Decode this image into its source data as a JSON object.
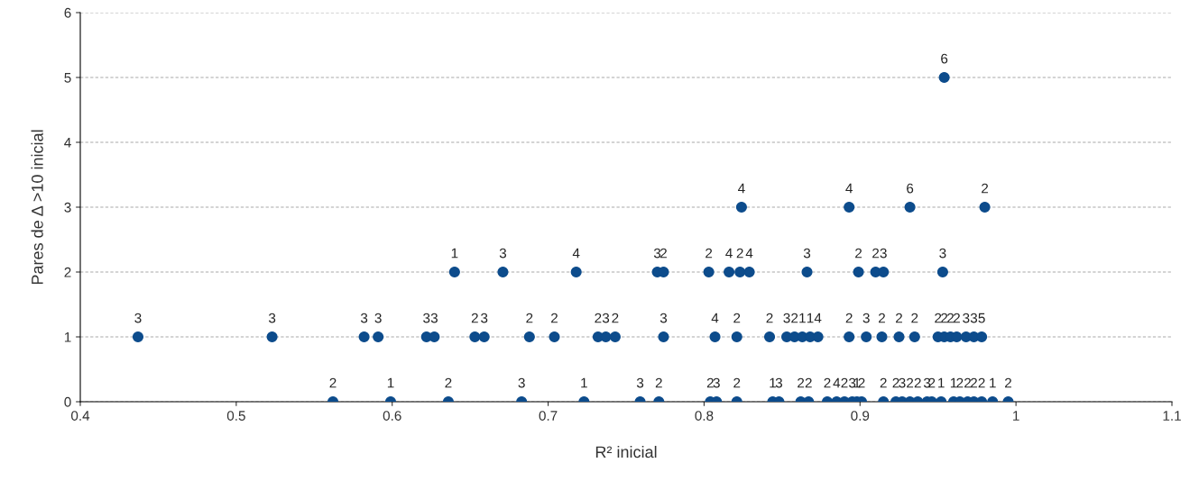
{
  "chart_data": {
    "type": "scatter",
    "xlabel": "R² inicial",
    "ylabel": "Pares de Δ >10 inicial",
    "xlim": [
      0.4,
      1.1
    ],
    "xticks": [
      0.4,
      0.5,
      0.6,
      0.7,
      0.8,
      0.9,
      1,
      1.1
    ],
    "ylim": [
      0,
      6
    ],
    "yticks": [
      0,
      1,
      2,
      3,
      4,
      5,
      6
    ],
    "grid": "y",
    "marker": "circle",
    "series": [
      {
        "color": "#0d4c8c",
        "x": [
          0.562,
          0.599,
          0.636,
          0.683,
          0.723,
          0.759,
          0.771,
          0.804,
          0.808,
          0.821,
          0.844,
          0.848,
          0.862,
          0.867,
          0.879,
          0.885,
          0.89,
          0.895,
          0.898,
          0.901,
          0.915,
          0.923,
          0.927,
          0.932,
          0.937,
          0.943,
          0.946,
          0.952,
          0.96,
          0.964,
          0.969,
          0.973,
          0.978,
          0.985,
          0.995,
          0.437,
          0.523,
          0.582,
          0.591,
          0.622,
          0.627,
          0.653,
          0.659,
          0.688,
          0.704,
          0.732,
          0.737,
          0.743,
          0.774,
          0.807,
          0.821,
          0.842,
          0.853,
          0.858,
          0.863,
          0.868,
          0.873,
          0.893,
          0.904,
          0.914,
          0.925,
          0.935,
          0.95,
          0.954,
          0.958,
          0.962,
          0.968,
          0.973,
          0.978,
          0.64,
          0.671,
          0.718,
          0.77,
          0.774,
          0.803,
          0.816,
          0.823,
          0.829,
          0.866,
          0.899,
          0.91,
          0.915,
          0.953,
          0.824,
          0.893,
          0.932,
          0.98,
          0.954
        ],
        "values": [
          0,
          0,
          0,
          0,
          0,
          0,
          0,
          0,
          0,
          0,
          0,
          0,
          0,
          0,
          0,
          0,
          0,
          0,
          0,
          0,
          0,
          0,
          0,
          0,
          0,
          0,
          0,
          0,
          0,
          0,
          0,
          0,
          0,
          0,
          0,
          1,
          1,
          1,
          1,
          1,
          1,
          1,
          1,
          1,
          1,
          1,
          1,
          1,
          1,
          1,
          1,
          1,
          1,
          1,
          1,
          1,
          1,
          1,
          1,
          1,
          1,
          1,
          1,
          1,
          1,
          1,
          1,
          1,
          1,
          2,
          2,
          2,
          2,
          2,
          2,
          2,
          2,
          2,
          2,
          2,
          2,
          2,
          2,
          3,
          3,
          3,
          3,
          5
        ]
      }
    ],
    "annotations": [
      {
        "text": "2",
        "x": 0.562,
        "y": 0
      },
      {
        "text": "1",
        "x": 0.599,
        "y": 0
      },
      {
        "text": "2",
        "x": 0.636,
        "y": 0
      },
      {
        "text": "3",
        "x": 0.683,
        "y": 0
      },
      {
        "text": "1",
        "x": 0.723,
        "y": 0
      },
      {
        "text": "3",
        "x": 0.759,
        "y": 0
      },
      {
        "text": "2",
        "x": 0.771,
        "y": 0
      },
      {
        "text": "2",
        "x": 0.804,
        "y": 0
      },
      {
        "text": "3",
        "x": 0.808,
        "y": 0
      },
      {
        "text": "2",
        "x": 0.821,
        "y": 0
      },
      {
        "text": "1",
        "x": 0.844,
        "y": 0
      },
      {
        "text": "3",
        "x": 0.848,
        "y": 0
      },
      {
        "text": "2",
        "x": 0.862,
        "y": 0
      },
      {
        "text": "2",
        "x": 0.867,
        "y": 0
      },
      {
        "text": "2",
        "x": 0.879,
        "y": 0
      },
      {
        "text": "4",
        "x": 0.885,
        "y": 0
      },
      {
        "text": "2",
        "x": 0.89,
        "y": 0
      },
      {
        "text": "3",
        "x": 0.895,
        "y": 0
      },
      {
        "text": "1",
        "x": 0.898,
        "y": 0
      },
      {
        "text": "2",
        "x": 0.901,
        "y": 0
      },
      {
        "text": "2",
        "x": 0.915,
        "y": 0
      },
      {
        "text": "2",
        "x": 0.923,
        "y": 0
      },
      {
        "text": "3",
        "x": 0.927,
        "y": 0
      },
      {
        "text": "2",
        "x": 0.932,
        "y": 0
      },
      {
        "text": "2",
        "x": 0.937,
        "y": 0
      },
      {
        "text": "3",
        "x": 0.943,
        "y": 0
      },
      {
        "text": "2",
        "x": 0.946,
        "y": 0
      },
      {
        "text": "1",
        "x": 0.952,
        "y": 0
      },
      {
        "text": "1",
        "x": 0.96,
        "y": 0
      },
      {
        "text": "2",
        "x": 0.964,
        "y": 0
      },
      {
        "text": "2",
        "x": 0.969,
        "y": 0
      },
      {
        "text": "2",
        "x": 0.973,
        "y": 0
      },
      {
        "text": "2",
        "x": 0.978,
        "y": 0
      },
      {
        "text": "1",
        "x": 0.985,
        "y": 0
      },
      {
        "text": "2",
        "x": 0.995,
        "y": 0
      },
      {
        "text": "3",
        "x": 0.437,
        "y": 1
      },
      {
        "text": "3",
        "x": 0.523,
        "y": 1
      },
      {
        "text": "3",
        "x": 0.582,
        "y": 1
      },
      {
        "text": "3",
        "x": 0.591,
        "y": 1
      },
      {
        "text": "3",
        "x": 0.622,
        "y": 1
      },
      {
        "text": "3",
        "x": 0.627,
        "y": 1
      },
      {
        "text": "2",
        "x": 0.653,
        "y": 1
      },
      {
        "text": "3",
        "x": 0.659,
        "y": 1
      },
      {
        "text": "2",
        "x": 0.688,
        "y": 1
      },
      {
        "text": "2",
        "x": 0.704,
        "y": 1
      },
      {
        "text": "2",
        "x": 0.732,
        "y": 1
      },
      {
        "text": "3",
        "x": 0.737,
        "y": 1
      },
      {
        "text": "2",
        "x": 0.743,
        "y": 1
      },
      {
        "text": "3",
        "x": 0.774,
        "y": 1
      },
      {
        "text": "4",
        "x": 0.807,
        "y": 1
      },
      {
        "text": "2",
        "x": 0.821,
        "y": 1
      },
      {
        "text": "2",
        "x": 0.842,
        "y": 1
      },
      {
        "text": "3",
        "x": 0.853,
        "y": 1
      },
      {
        "text": "2",
        "x": 0.858,
        "y": 1
      },
      {
        "text": "1",
        "x": 0.863,
        "y": 1
      },
      {
        "text": "1",
        "x": 0.868,
        "y": 1
      },
      {
        "text": "4",
        "x": 0.873,
        "y": 1
      },
      {
        "text": "2",
        "x": 0.893,
        "y": 1
      },
      {
        "text": "3",
        "x": 0.904,
        "y": 1
      },
      {
        "text": "2",
        "x": 0.914,
        "y": 1
      },
      {
        "text": "2",
        "x": 0.925,
        "y": 1
      },
      {
        "text": "2",
        "x": 0.935,
        "y": 1
      },
      {
        "text": "2",
        "x": 0.95,
        "y": 1
      },
      {
        "text": "2",
        "x": 0.954,
        "y": 1
      },
      {
        "text": "2",
        "x": 0.958,
        "y": 1
      },
      {
        "text": "2",
        "x": 0.962,
        "y": 1
      },
      {
        "text": "3",
        "x": 0.968,
        "y": 1
      },
      {
        "text": "3",
        "x": 0.973,
        "y": 1
      },
      {
        "text": "5",
        "x": 0.978,
        "y": 1
      },
      {
        "text": "1",
        "x": 0.64,
        "y": 2
      },
      {
        "text": "3",
        "x": 0.671,
        "y": 2
      },
      {
        "text": "4",
        "x": 0.718,
        "y": 2
      },
      {
        "text": "3",
        "x": 0.77,
        "y": 2
      },
      {
        "text": "2",
        "x": 0.774,
        "y": 2
      },
      {
        "text": "2",
        "x": 0.803,
        "y": 2
      },
      {
        "text": "4",
        "x": 0.816,
        "y": 2
      },
      {
        "text": "2",
        "x": 0.823,
        "y": 2
      },
      {
        "text": "4",
        "x": 0.829,
        "y": 2
      },
      {
        "text": "3",
        "x": 0.866,
        "y": 2
      },
      {
        "text": "2",
        "x": 0.899,
        "y": 2
      },
      {
        "text": "2",
        "x": 0.91,
        "y": 2
      },
      {
        "text": "3",
        "x": 0.915,
        "y": 2
      },
      {
        "text": "3",
        "x": 0.953,
        "y": 2
      },
      {
        "text": "4",
        "x": 0.824,
        "y": 3
      },
      {
        "text": "4",
        "x": 0.893,
        "y": 3
      },
      {
        "text": "6",
        "x": 0.932,
        "y": 3
      },
      {
        "text": "2",
        "x": 0.98,
        "y": 3
      },
      {
        "text": "6",
        "x": 0.954,
        "y": 5
      }
    ]
  }
}
